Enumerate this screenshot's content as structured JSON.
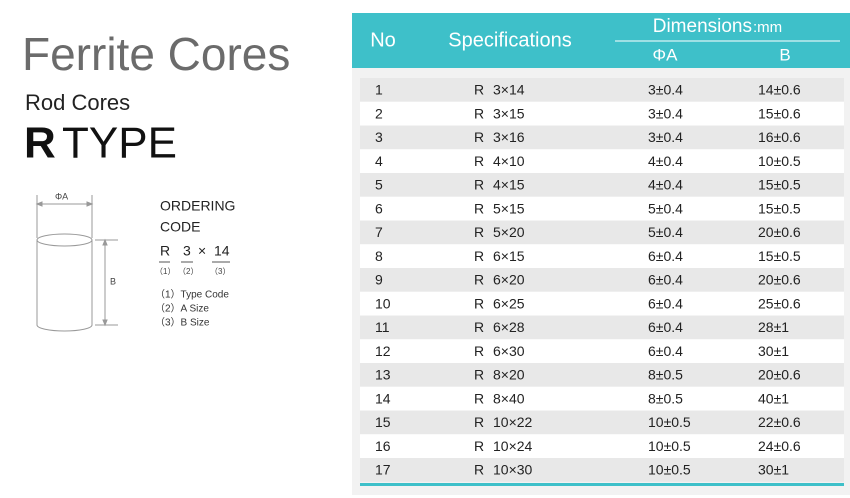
{
  "header": {
    "title": "Ferrite Cores",
    "subtitle": "Rod Cores",
    "type_letter": "R",
    "type_word": "TYPE"
  },
  "diagram": {
    "label_a": "ΦA",
    "label_b": "B"
  },
  "ordering": {
    "heading": [
      "ORDERING",
      "CODE"
    ],
    "code": [
      "R",
      "3",
      "×",
      "14"
    ],
    "code_indices": [
      "（1）",
      "（2）",
      "（3）"
    ],
    "legend": [
      "（1）Type Code",
      "（2）A Size",
      "（3）B Size"
    ]
  },
  "table": {
    "headers": {
      "no": "No",
      "spec": "Specifications",
      "dimensions": "Dimensions",
      "unit": ":mm",
      "a": "ΦA",
      "b": "B"
    },
    "rows": [
      [
        "1",
        "R",
        "3×14",
        "3±0.4",
        "14±0.6"
      ],
      [
        "2",
        "R",
        "3×15",
        "3±0.4",
        "15±0.6"
      ],
      [
        "3",
        "R",
        "3×16",
        "3±0.4",
        "16±0.6"
      ],
      [
        "4",
        "R",
        "4×10",
        "4±0.4",
        "10±0.5"
      ],
      [
        "5",
        "R",
        "4×15",
        "4±0.4",
        "15±0.5"
      ],
      [
        "6",
        "R",
        "5×15",
        "5±0.4",
        "15±0.5"
      ],
      [
        "7",
        "R",
        "5×20",
        "5±0.4",
        "20±0.6"
      ],
      [
        "8",
        "R",
        "6×15",
        "6±0.4",
        "15±0.5"
      ],
      [
        "9",
        "R",
        "6×20",
        "6±0.4",
        "20±0.6"
      ],
      [
        "10",
        "R",
        "6×25",
        "6±0.4",
        "25±0.6"
      ],
      [
        "11",
        "R",
        "6×28",
        "6±0.4",
        "28±1"
      ],
      [
        "12",
        "R",
        "6×30",
        "6±0.4",
        "30±1"
      ],
      [
        "13",
        "R",
        "8×20",
        "8±0.5",
        "20±0.6"
      ],
      [
        "14",
        "R",
        "8×40",
        "8±0.5",
        "40±1"
      ],
      [
        "15",
        "R",
        "10×22",
        "10±0.5",
        "22±0.6"
      ],
      [
        "16",
        "R",
        "10×24",
        "10±0.5",
        "24±0.6"
      ],
      [
        "17",
        "R",
        "10×30",
        "10±0.5",
        "30±1"
      ]
    ]
  }
}
